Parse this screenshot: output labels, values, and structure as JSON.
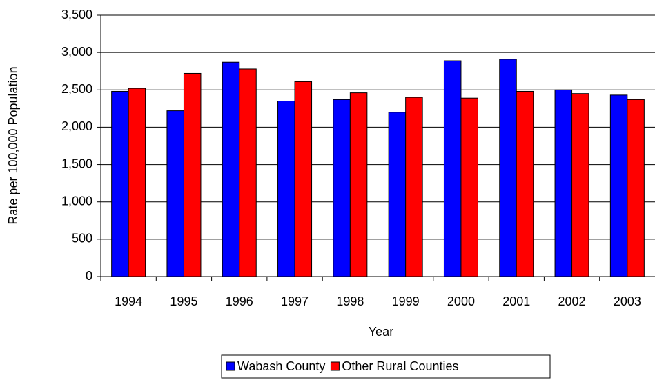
{
  "chart_data": {
    "type": "bar",
    "x_label": "Year",
    "y_label": "Rate per 100,000 Population",
    "categories": [
      "1994",
      "1995",
      "1996",
      "1997",
      "1998",
      "1999",
      "2000",
      "2001",
      "2002",
      "2003"
    ],
    "series": [
      {
        "name": "Wabash County",
        "color": "#0000ff",
        "values": [
          2480,
          2220,
          2870,
          2350,
          2370,
          2200,
          2890,
          2910,
          2500,
          2430
        ]
      },
      {
        "name": "Other Rural Counties",
        "color": "#ff0000",
        "values": [
          2520,
          2720,
          2780,
          2610,
          2460,
          2400,
          2390,
          2480,
          2450,
          2370
        ]
      }
    ],
    "ylim": [
      0,
      3500
    ],
    "yticks": [
      0,
      500,
      {
        "value": 1000,
        "label": "1,000"
      },
      {
        "value": 1500,
        "label": "1,500"
      },
      {
        "value": 2000,
        "label": "2,000"
      },
      {
        "value": 2500,
        "label": "2,500"
      },
      {
        "value": 3000,
        "label": "3,000"
      },
      {
        "value": 3500,
        "label": "3,500"
      }
    ],
    "grid": true,
    "legend": "bottom"
  }
}
